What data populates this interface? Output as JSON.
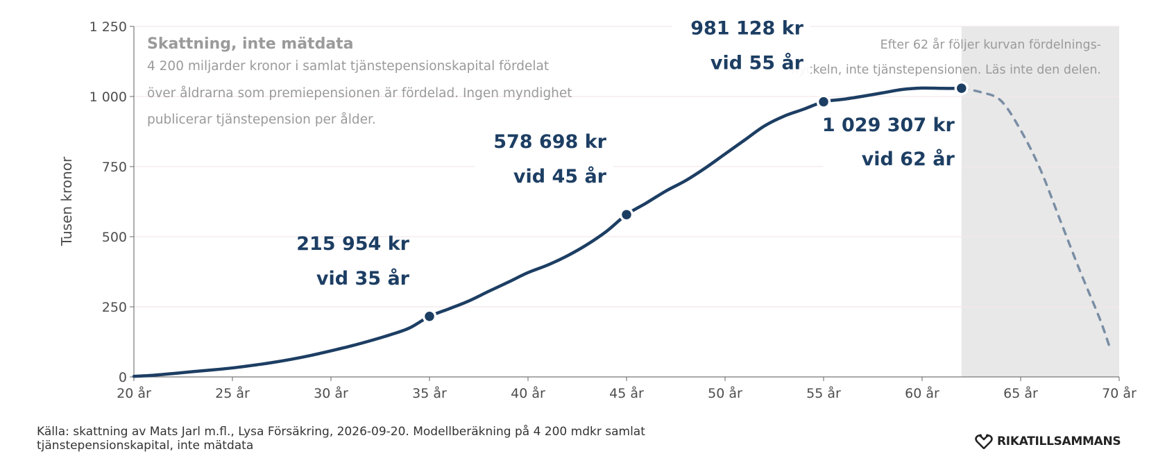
{
  "chart_data": {
    "type": "line",
    "title": "Skattning, inte mätdata",
    "subtitle_lines": [
      "4 200 miljarder kronor i samlat tjänstepensionskapital fördelat",
      "över åldrarna som premiepensionen är fördelad. Ingen myndighet",
      "publicerar tjänstepension per ålder."
    ],
    "ylabel": "Tusen kronor",
    "xlabel": "",
    "xlim": [
      20,
      70
    ],
    "ylim": [
      0,
      1250
    ],
    "x_ticks": [
      20,
      25,
      30,
      35,
      40,
      45,
      50,
      55,
      60,
      65,
      70
    ],
    "x_tick_labels": [
      "20 år",
      "25 år",
      "30 år",
      "35 år",
      "40 år",
      "45 år",
      "50 år",
      "55 år",
      "60 år",
      "65 år",
      "70 år"
    ],
    "y_ticks": [
      0,
      250,
      500,
      750,
      1000,
      1250
    ],
    "y_tick_labels": [
      "0",
      "250",
      "500",
      "750",
      "1 000",
      "1 250"
    ],
    "grid": "horizontal",
    "series": [
      {
        "style": "solid",
        "color": "#1d3e63",
        "x": [
          20,
          21,
          22,
          23,
          24,
          25,
          26,
          27,
          28,
          29,
          30,
          31,
          32,
          33,
          34,
          35,
          36,
          37,
          38,
          39,
          40,
          41,
          42,
          43,
          44,
          45,
          46,
          47,
          48,
          49,
          50,
          51,
          52,
          53,
          54,
          55,
          56,
          57,
          58,
          59,
          60,
          61,
          62
        ],
        "y": [
          2,
          6,
          12,
          19,
          25,
          32,
          41,
          51,
          63,
          77,
          93,
          110,
          129,
          150,
          175,
          216,
          243,
          271,
          305,
          338,
          372,
          399,
          432,
          472,
          520,
          579,
          620,
          663,
          700,
          745,
          795,
          845,
          895,
          930,
          955,
          981,
          990,
          1001,
          1013,
          1025,
          1030,
          1029,
          1029
        ]
      },
      {
        "style": "dashed",
        "color": "#7a8ea5",
        "x": [
          62,
          63,
          64,
          65,
          66,
          67,
          68,
          69,
          69.5
        ],
        "y": [
          1029,
          1015,
          985,
          880,
          740,
          560,
          380,
          210,
          110
        ]
      }
    ],
    "highlights": [
      {
        "x": 35,
        "y": 215.954,
        "label_value": "215 954 kr",
        "label_age": "vid 35 år"
      },
      {
        "x": 45,
        "y": 578.698,
        "label_value": "578 698 kr",
        "label_age": "vid 45 år"
      },
      {
        "x": 55,
        "y": 981.128,
        "label_value": "981 128 kr",
        "label_age": "vid 55 år"
      },
      {
        "x": 62,
        "y": 1029.307,
        "label_value": "1 029 307 kr",
        "label_age": "vid 62 år"
      }
    ],
    "shaded_region": {
      "x_from": 62,
      "x_to": 70,
      "color": "#e8e8e8",
      "note_lines": [
        "Efter 62 år följer kurvan fördelnings-",
        "nyckeln, inte tjänstepensionen. Läs inte den delen."
      ]
    }
  },
  "footer": {
    "source_line1": "Källa: skattning av Mats Jarl m.fl., Lysa Försäkring, 2026-09-20. Modellberäkning på 4 200 mdkr samlat",
    "source_line2": "tjänstepensionskapital, inte mätdata",
    "brand": "RIKATILLSAMMANS",
    "brand_icon": "heart-people-icon",
    "brand_color": "#222222"
  }
}
